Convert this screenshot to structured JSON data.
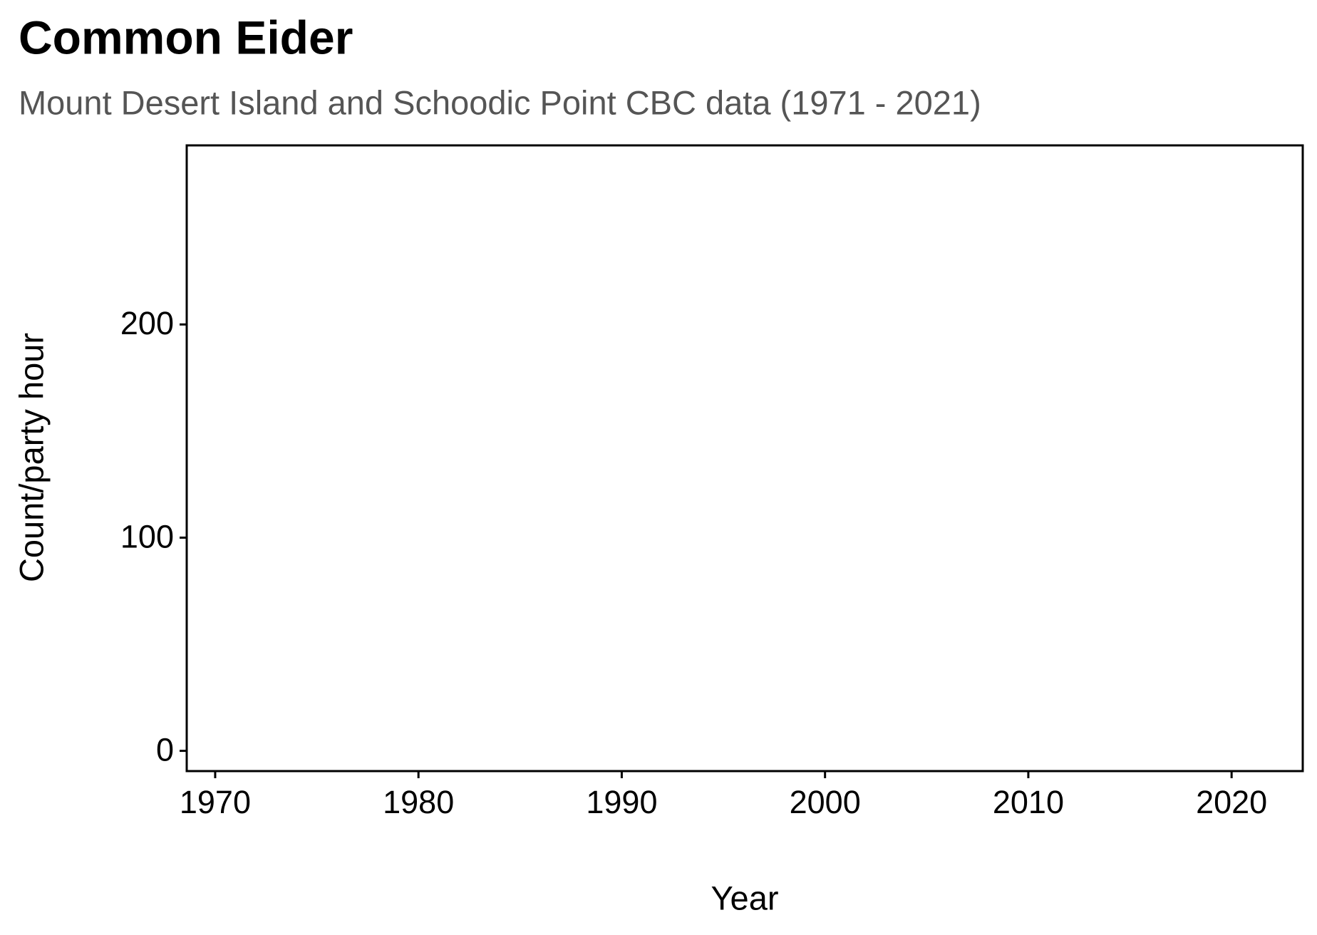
{
  "chart_data": {
    "type": "line",
    "title": "Common Eider",
    "subtitle": "Mount Desert Island and Schoodic Point CBC data (1971 - 2021)",
    "x_label": "Year",
    "y_label": "Count/party hour",
    "xlim": [
      1968.6,
      2023.5
    ],
    "xticks": [
      1970,
      1980,
      1990,
      2000,
      2010,
      2020
    ],
    "ylim": [
      -9.5,
      284
    ],
    "yticks": [
      0,
      100,
      200
    ],
    "grid": false
  }
}
